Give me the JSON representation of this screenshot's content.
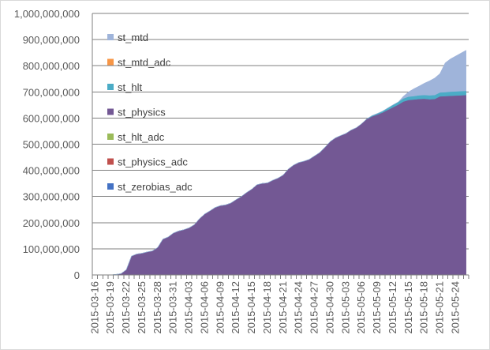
{
  "chart_data": {
    "type": "area",
    "stacked": true,
    "title": "",
    "xlabel": "",
    "ylabel": "",
    "ylim": [
      0,
      1000000000
    ],
    "y_ticks": [
      "0",
      "100,000,000",
      "200,000,000",
      "300,000,000",
      "400,000,000",
      "500,000,000",
      "600,000,000",
      "700,000,000",
      "800,000,000",
      "900,000,000",
      "1,000,000,000"
    ],
    "x_ticks": [
      "2015-03-16",
      "2015-03-19",
      "2015-03-22",
      "2015-03-25",
      "2015-03-28",
      "2015-03-31",
      "2015-04-03",
      "2015-04-06",
      "2015-04-09",
      "2015-04-12",
      "2015-04-15",
      "2015-04-18",
      "2015-04-21",
      "2015-04-24",
      "2015-04-27",
      "2015-04-30",
      "2015-05-03",
      "2015-05-06",
      "2015-05-09",
      "2015-05-12",
      "2015-05-15",
      "2015-05-18",
      "2015-05-21",
      "2015-05-24"
    ],
    "x": [
      "2015-03-16",
      "2015-03-17",
      "2015-03-18",
      "2015-03-19",
      "2015-03-20",
      "2015-03-21",
      "2015-03-22",
      "2015-03-23",
      "2015-03-24",
      "2015-03-25",
      "2015-03-26",
      "2015-03-27",
      "2015-03-28",
      "2015-03-29",
      "2015-03-30",
      "2015-03-31",
      "2015-04-01",
      "2015-04-02",
      "2015-04-03",
      "2015-04-04",
      "2015-04-05",
      "2015-04-06",
      "2015-04-07",
      "2015-04-08",
      "2015-04-09",
      "2015-04-10",
      "2015-04-11",
      "2015-04-12",
      "2015-04-13",
      "2015-04-14",
      "2015-04-15",
      "2015-04-16",
      "2015-04-17",
      "2015-04-18",
      "2015-04-19",
      "2015-04-20",
      "2015-04-21",
      "2015-04-22",
      "2015-04-23",
      "2015-04-24",
      "2015-04-25",
      "2015-04-26",
      "2015-04-27",
      "2015-04-28",
      "2015-04-29",
      "2015-04-30",
      "2015-05-01",
      "2015-05-02",
      "2015-05-03",
      "2015-05-04",
      "2015-05-05",
      "2015-05-06",
      "2015-05-07",
      "2015-05-08",
      "2015-05-09",
      "2015-05-10",
      "2015-05-11",
      "2015-05-12",
      "2015-05-13",
      "2015-05-14",
      "2015-05-15",
      "2015-05-16",
      "2015-05-17",
      "2015-05-18",
      "2015-05-19",
      "2015-05-20",
      "2015-05-21",
      "2015-05-22",
      "2015-05-23",
      "2015-05-24",
      "2015-05-25",
      "2015-05-26"
    ],
    "series": [
      {
        "name": "st_zerobias_adc",
        "color": "#4472c4",
        "values": [
          0,
          0,
          0,
          0,
          0,
          0,
          0,
          0,
          0,
          0,
          0,
          0,
          0,
          0,
          0,
          0,
          0,
          0,
          0,
          0,
          0,
          0,
          0,
          0,
          0,
          0,
          0,
          0,
          0,
          0,
          0,
          0,
          0,
          0,
          0,
          0,
          0,
          0,
          0,
          0,
          0,
          0,
          0,
          0,
          0,
          0,
          0,
          0,
          0,
          0,
          0,
          0,
          0,
          0,
          0,
          0,
          0,
          0,
          0,
          0,
          0,
          0,
          0,
          0,
          0,
          0,
          0,
          0,
          0,
          0,
          0,
          0
        ]
      },
      {
        "name": "st_physics_adc",
        "color": "#c0504d",
        "values": [
          0,
          0,
          0,
          0,
          0,
          0,
          0,
          0,
          0,
          0,
          0,
          0,
          0,
          0,
          0,
          0,
          0,
          0,
          0,
          0,
          0,
          0,
          0,
          0,
          0,
          0,
          0,
          0,
          0,
          0,
          0,
          0,
          0,
          0,
          0,
          0,
          0,
          0,
          0,
          0,
          0,
          0,
          0,
          0,
          0,
          0,
          1000000,
          1000000,
          1000000,
          1000000,
          1000000,
          1000000,
          1000000,
          1000000,
          1000000,
          1000000,
          1000000,
          1000000,
          1000000,
          1000000,
          1000000,
          1000000,
          1000000,
          1000000,
          1000000,
          1000000,
          1000000,
          1000000,
          1000000,
          1000000,
          1000000,
          1000000
        ]
      },
      {
        "name": "st_hlt_adc",
        "color": "#9bbb59",
        "values": [
          0,
          0,
          0,
          0,
          0,
          0,
          0,
          0,
          0,
          0,
          0,
          0,
          0,
          0,
          0,
          0,
          0,
          0,
          0,
          0,
          0,
          0,
          0,
          0,
          0,
          0,
          0,
          0,
          0,
          0,
          0,
          0,
          0,
          0,
          0,
          0,
          0,
          0,
          0,
          0,
          0,
          0,
          0,
          0,
          0,
          0,
          0,
          0,
          0,
          0,
          0,
          0,
          0,
          0,
          0,
          0,
          0,
          0,
          0,
          0,
          0,
          0,
          0,
          0,
          0,
          0,
          0,
          0,
          0,
          0,
          0,
          0
        ]
      },
      {
        "name": "st_physics",
        "color": "#735894",
        "values": [
          0,
          0,
          0,
          0,
          2000000,
          5000000,
          20000000,
          72000000,
          80000000,
          83000000,
          88000000,
          92000000,
          105000000,
          137000000,
          145000000,
          160000000,
          168000000,
          173000000,
          180000000,
          192000000,
          215000000,
          233000000,
          245000000,
          258000000,
          265000000,
          268000000,
          275000000,
          288000000,
          300000000,
          315000000,
          328000000,
          345000000,
          350000000,
          352000000,
          362000000,
          370000000,
          382000000,
          405000000,
          420000000,
          430000000,
          435000000,
          442000000,
          455000000,
          468000000,
          488000000,
          510000000,
          523000000,
          532000000,
          540000000,
          553000000,
          562000000,
          577000000,
          595000000,
          605000000,
          612000000,
          620000000,
          630000000,
          640000000,
          650000000,
          662000000,
          668000000,
          670000000,
          672000000,
          673000000,
          671000000,
          672000000,
          682000000,
          683000000,
          684000000,
          685000000,
          686000000,
          687000000
        ]
      },
      {
        "name": "st_hlt",
        "color": "#4bacc6",
        "values": [
          0,
          0,
          0,
          0,
          0,
          0,
          0,
          0,
          0,
          0,
          0,
          0,
          0,
          0,
          0,
          0,
          0,
          0,
          0,
          0,
          0,
          0,
          0,
          0,
          0,
          0,
          0,
          0,
          0,
          0,
          0,
          0,
          0,
          0,
          0,
          0,
          0,
          0,
          0,
          0,
          0,
          0,
          0,
          0,
          0,
          0,
          0,
          0,
          0,
          0,
          0,
          0,
          1000000,
          3000000,
          4000000,
          5000000,
          7000000,
          9000000,
          10000000,
          12000000,
          13000000,
          13000000,
          14000000,
          14000000,
          15000000,
          15000000,
          15000000,
          15000000,
          16000000,
          16000000,
          16000000,
          16000000
        ]
      },
      {
        "name": "st_mtd_adc",
        "color": "#f79646",
        "values": [
          0,
          0,
          0,
          0,
          0,
          0,
          0,
          0,
          0,
          0,
          0,
          0,
          0,
          0,
          0,
          0,
          0,
          0,
          0,
          0,
          0,
          0,
          0,
          0,
          0,
          0,
          0,
          0,
          0,
          0,
          0,
          0,
          0,
          0,
          0,
          0,
          0,
          0,
          0,
          0,
          0,
          0,
          0,
          0,
          0,
          0,
          0,
          0,
          0,
          0,
          0,
          0,
          0,
          0,
          0,
          0,
          0,
          0,
          0,
          0,
          0,
          0,
          0,
          0,
          0,
          0,
          0,
          0,
          0,
          0,
          0,
          0
        ]
      },
      {
        "name": "st_mtd",
        "color": "#9fb4da",
        "values": [
          0,
          0,
          0,
          0,
          0,
          0,
          0,
          0,
          0,
          0,
          0,
          0,
          0,
          0,
          0,
          0,
          0,
          0,
          0,
          0,
          0,
          0,
          0,
          0,
          0,
          0,
          0,
          0,
          0,
          0,
          0,
          0,
          0,
          0,
          0,
          0,
          0,
          0,
          0,
          0,
          0,
          0,
          0,
          0,
          0,
          0,
          0,
          0,
          0,
          0,
          0,
          0,
          0,
          0,
          0,
          0,
          0,
          0,
          0,
          8000000,
          18000000,
          28000000,
          35000000,
          45000000,
          55000000,
          65000000,
          72000000,
          112000000,
          125000000,
          135000000,
          145000000,
          155000000
        ]
      }
    ],
    "legend": {
      "position": "left-inside",
      "order": [
        "st_mtd",
        "st_mtd_adc",
        "st_hlt",
        "st_physics",
        "st_hlt_adc",
        "st_physics_adc",
        "st_zerobias_adc"
      ]
    },
    "grid": {
      "y_major": true,
      "x_major": false
    }
  }
}
